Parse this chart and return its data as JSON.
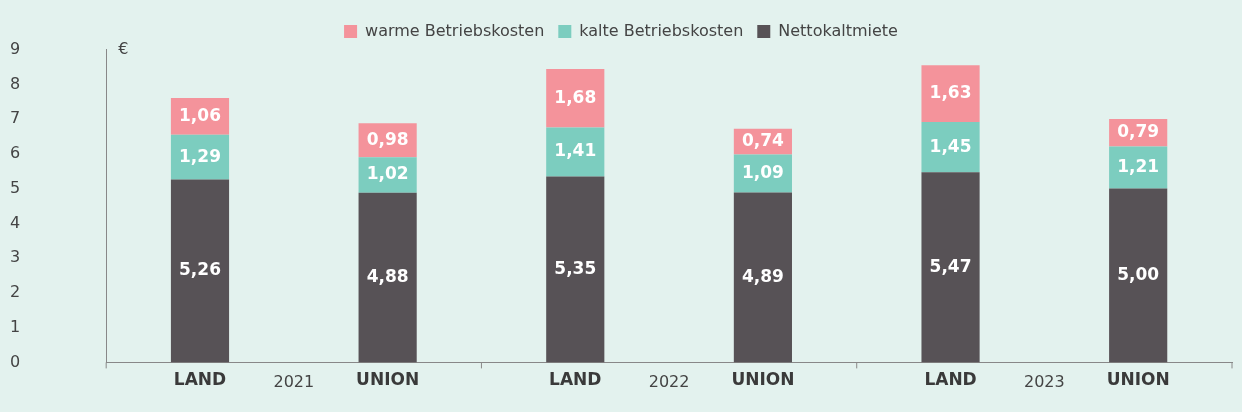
{
  "chart_data": {
    "type": "bar",
    "stacked": true,
    "ylabel": "€",
    "categories": [
      "LAND",
      "UNION",
      "LAND",
      "UNION",
      "LAND",
      "UNION"
    ],
    "annotations": [
      "2021",
      "2022",
      "2023"
    ],
    "series": [
      {
        "name": "Nettokaltmiete",
        "color": "#575256",
        "values": [
          5.26,
          4.88,
          5.35,
          4.89,
          5.47,
          5.0
        ],
        "value_labels": [
          "5,26",
          "4,88",
          "5,35",
          "4,89",
          "5,47",
          "5,00"
        ]
      },
      {
        "name": "kalte Betriebskosten",
        "color": "#7ccdbf",
        "values": [
          1.29,
          1.02,
          1.41,
          1.09,
          1.45,
          1.21
        ],
        "value_labels": [
          "1,29",
          "1,02",
          "1,41",
          "1,09",
          "1,45",
          "1,21"
        ]
      },
      {
        "name": "warme Betriebskosten",
        "color": "#f4939b",
        "values": [
          1.06,
          0.98,
          1.68,
          0.74,
          1.63,
          0.79
        ],
        "value_labels": [
          "1,06",
          "0,98",
          "1,68",
          "0,74",
          "1,63",
          "0,79"
        ]
      }
    ],
    "ylim": [
      0,
      9
    ],
    "yticks": [
      0,
      1,
      2,
      3,
      4,
      5,
      6,
      7,
      8,
      9
    ],
    "grid": false,
    "legend": "top"
  }
}
